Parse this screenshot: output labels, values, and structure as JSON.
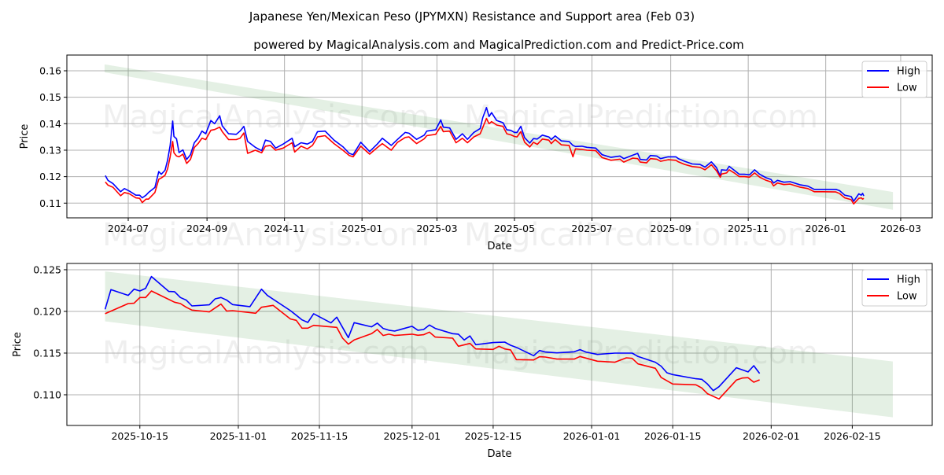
{
  "title": "Japanese Yen/Mexican Peso (JPYMXN) Resistance and Support area (Feb 03)",
  "subtitle": "powered by MagicalAnalysis.com and MagicalPrediction.com and Predict-Price.com",
  "watermarks": [
    "MagicalAnalysis.com",
    "MagicalPrediction.com"
  ],
  "colors": {
    "high": "#0000ff",
    "low": "#ff0000",
    "band": "#2e8b2e",
    "grid": "#b0b0b0"
  },
  "chart_data": [
    {
      "type": "line",
      "name": "full-history",
      "x_unit": "days since 2024-07-01",
      "xlabel": "Date",
      "ylabel": "Price",
      "xlim": [
        -48.3,
        632.8
      ],
      "ylim": [
        0.10444,
        0.16594
      ],
      "grid": true,
      "legend": "top-right",
      "xticks": [
        {
          "x": 0,
          "label": "2024-07"
        },
        {
          "x": 62,
          "label": "2024-09"
        },
        {
          "x": 123,
          "label": "2024-11"
        },
        {
          "x": 184,
          "label": "2025-01"
        },
        {
          "x": 243,
          "label": "2025-03"
        },
        {
          "x": 304,
          "label": "2025-05"
        },
        {
          "x": 365,
          "label": "2025-07"
        },
        {
          "x": 427,
          "label": "2025-09"
        },
        {
          "x": 488,
          "label": "2025-11"
        },
        {
          "x": 549,
          "label": "2026-01"
        },
        {
          "x": 608,
          "label": "2026-03"
        }
      ],
      "yticks": [
        {
          "y": 0.11,
          "label": "0.11"
        },
        {
          "y": 0.12,
          "label": "0.12"
        },
        {
          "y": 0.13,
          "label": "0.13"
        },
        {
          "y": 0.14,
          "label": "0.14"
        },
        {
          "y": 0.15,
          "label": "0.15"
        },
        {
          "y": 0.16,
          "label": "0.16"
        }
      ],
      "band": {
        "x": [
          -18.6,
          601.9
        ],
        "upper": [
          0.1624,
          0.1142
        ],
        "lower": [
          0.1594,
          0.1075
        ]
      },
      "x": [
        -18,
        -16,
        -12,
        -6,
        -3,
        1,
        6,
        9,
        11,
        14,
        16,
        21,
        24,
        26,
        29,
        31,
        33,
        35,
        36,
        38,
        40,
        43,
        46,
        49,
        52,
        55,
        58,
        61,
        65,
        68,
        72,
        74,
        79,
        85,
        88,
        91,
        94,
        100,
        105,
        108,
        112,
        116,
        122,
        129,
        131,
        136,
        141,
        145,
        149,
        155,
        162,
        169,
        174,
        177,
        183,
        190,
        196,
        200,
        207,
        212,
        218,
        221,
        227,
        233,
        235,
        242,
        246,
        248,
        253,
        258,
        263,
        267,
        272,
        277,
        279,
        282,
        284,
        286,
        290,
        295,
        298,
        301,
        304,
        306,
        309,
        312,
        316,
        319,
        322,
        326,
        331,
        333,
        336,
        341,
        347,
        350,
        352,
        357,
        361,
        368,
        373,
        380,
        387,
        390,
        397,
        401,
        403,
        408,
        411,
        416,
        419,
        425,
        431,
        433,
        438,
        444,
        450,
        454,
        459,
        463,
        466,
        467,
        471,
        473,
        477,
        481,
        485,
        489,
        493,
        497,
        502,
        506,
        508,
        511,
        516,
        521,
        529,
        535,
        540,
        547,
        557,
        560,
        564,
        569,
        571,
        575,
        577,
        578,
        579
      ],
      "series": [
        {
          "name": "High",
          "values": [
            0.1204,
            0.1186,
            0.1174,
            0.1143,
            0.1155,
            0.1145,
            0.113,
            0.113,
            0.112,
            0.113,
            0.114,
            0.1159,
            0.1219,
            0.1209,
            0.1224,
            0.1263,
            0.1318,
            0.141,
            0.1352,
            0.1343,
            0.1291,
            0.1301,
            0.1265,
            0.1283,
            0.1328,
            0.1345,
            0.1372,
            0.1362,
            0.1412,
            0.14,
            0.143,
            0.1392,
            0.1362,
            0.136,
            0.1372,
            0.139,
            0.1333,
            0.1311,
            0.1298,
            0.1338,
            0.1333,
            0.1308,
            0.1323,
            0.1345,
            0.1313,
            0.1328,
            0.1323,
            0.1333,
            0.137,
            0.1372,
            0.1338,
            0.1313,
            0.1288,
            0.1283,
            0.133,
            0.1295,
            0.1323,
            0.1345,
            0.1318,
            0.1341,
            0.1367,
            0.1364,
            0.1341,
            0.1357,
            0.1372,
            0.1377,
            0.1414,
            0.1387,
            0.1384,
            0.1341,
            0.1362,
            0.1341,
            0.1367,
            0.1382,
            0.1422,
            0.1461,
            0.1427,
            0.1442,
            0.1412,
            0.1404,
            0.1377,
            0.1375,
            0.1367,
            0.1367,
            0.139,
            0.1347,
            0.1327,
            0.1344,
            0.1342,
            0.1357,
            0.135,
            0.134,
            0.1354,
            0.1335,
            0.1333,
            0.1318,
            0.1314,
            0.1315,
            0.1311,
            0.1308,
            0.1283,
            0.1273,
            0.1278,
            0.1268,
            0.1281,
            0.1288,
            0.1265,
            0.1263,
            0.128,
            0.1278,
            0.1268,
            0.1275,
            0.1275,
            0.1268,
            0.1258,
            0.1248,
            0.1246,
            0.1236,
            0.1256,
            0.1234,
            0.1202,
            0.1226,
            0.1224,
            0.1239,
            0.1224,
            0.1209,
            0.1209,
            0.1207,
            0.1226,
            0.1209,
            0.1196,
            0.1189,
            0.1176,
            0.1186,
            0.1179,
            0.1181,
            0.1169,
            0.1164,
            0.1152,
            0.1152,
            0.1152,
            0.1147,
            0.113,
            0.1125,
            0.1107,
            0.1135,
            0.113,
            0.1137,
            0.1127
          ]
        },
        {
          "name": "Low",
          "values": [
            0.118,
            0.1168,
            0.116,
            0.1128,
            0.114,
            0.1135,
            0.112,
            0.1118,
            0.1102,
            0.1115,
            0.1115,
            0.114,
            0.119,
            0.1195,
            0.1205,
            0.123,
            0.1275,
            0.1333,
            0.129,
            0.1278,
            0.1275,
            0.1285,
            0.125,
            0.1265,
            0.131,
            0.1325,
            0.1345,
            0.134,
            0.1375,
            0.1378,
            0.1387,
            0.137,
            0.134,
            0.134,
            0.1345,
            0.1365,
            0.1288,
            0.13,
            0.129,
            0.1315,
            0.1318,
            0.13,
            0.1308,
            0.1328,
            0.1293,
            0.1315,
            0.1305,
            0.1318,
            0.135,
            0.1355,
            0.1325,
            0.13,
            0.128,
            0.1275,
            0.1315,
            0.1285,
            0.131,
            0.1325,
            0.13,
            0.133,
            0.1348,
            0.135,
            0.1325,
            0.1343,
            0.1355,
            0.136,
            0.139,
            0.137,
            0.1372,
            0.1328,
            0.1345,
            0.1328,
            0.135,
            0.1362,
            0.1385,
            0.142,
            0.14,
            0.1408,
            0.1395,
            0.139,
            0.1362,
            0.1358,
            0.1352,
            0.135,
            0.137,
            0.133,
            0.1312,
            0.133,
            0.1322,
            0.1342,
            0.1338,
            0.1325,
            0.134,
            0.132,
            0.1318,
            0.1275,
            0.1305,
            0.1303,
            0.13,
            0.1298,
            0.1272,
            0.1262,
            0.1266,
            0.1255,
            0.127,
            0.1268,
            0.1255,
            0.1252,
            0.1268,
            0.1266,
            0.1258,
            0.1264,
            0.1262,
            0.1256,
            0.1246,
            0.1238,
            0.1235,
            0.1226,
            0.1245,
            0.1222,
            0.1198,
            0.121,
            0.1214,
            0.1226,
            0.1214,
            0.12,
            0.12,
            0.1198,
            0.1214,
            0.1198,
            0.1186,
            0.118,
            0.1165,
            0.1176,
            0.117,
            0.1172,
            0.116,
            0.1155,
            0.1143,
            0.1143,
            0.1142,
            0.1136,
            0.112,
            0.1113,
            0.1097,
            0.1118,
            0.112,
            0.1115,
            0.1118
          ]
        }
      ]
    },
    {
      "type": "line",
      "name": "recent-detail",
      "x_unit": "days since 2025-10-15",
      "xlabel": "Date",
      "ylabel": "Price",
      "xlim": [
        -12.6,
        136.8
      ],
      "ylim": [
        0.10632,
        0.12575
      ],
      "grid": true,
      "legend": "top-right",
      "xticks": [
        {
          "x": 0,
          "label": "2025-10-15"
        },
        {
          "x": 17,
          "label": "2025-11-01"
        },
        {
          "x": 31,
          "label": "2025-11-15"
        },
        {
          "x": 47,
          "label": "2025-12-01"
        },
        {
          "x": 61,
          "label": "2025-12-15"
        },
        {
          "x": 78,
          "label": "2026-01-01"
        },
        {
          "x": 92,
          "label": "2026-01-15"
        },
        {
          "x": 109,
          "label": "2026-02-01"
        },
        {
          "x": 123,
          "label": "2026-02-15"
        }
      ],
      "yticks": [
        {
          "y": 0.11,
          "label": "0.110"
        },
        {
          "y": 0.115,
          "label": "0.115"
        },
        {
          "y": 0.12,
          "label": "0.120"
        },
        {
          "y": 0.125,
          "label": "0.125"
        }
      ],
      "band": {
        "x": [
          -6,
          130
        ],
        "upper": [
          0.1248,
          0.114
        ],
        "lower": [
          0.1188,
          0.1073
        ]
      },
      "series": [
        {
          "name": "High",
          "x": [
            -6,
            -5,
            -2,
            -1,
            0,
            1,
            2,
            5,
            6,
            7,
            8,
            9,
            12,
            13,
            14,
            15,
            16,
            19,
            21,
            22,
            26,
            28,
            29,
            30,
            33,
            34,
            36,
            37,
            40,
            41,
            42,
            43,
            44,
            47,
            48,
            49,
            50,
            51,
            54,
            55,
            56,
            57,
            58,
            61,
            63,
            64,
            65,
            68,
            69,
            70,
            72,
            75,
            76,
            77,
            79,
            82,
            85,
            86,
            89,
            90,
            91,
            92,
            96,
            97,
            98,
            99,
            100,
            103,
            105,
            106,
            107
          ],
          "values": [
            0.12025,
            0.12261,
            0.12192,
            0.12267,
            0.12245,
            0.12277,
            0.12418,
            0.12239,
            0.12236,
            0.12167,
            0.12135,
            0.12066,
            0.12079,
            0.12151,
            0.12167,
            0.12135,
            0.12082,
            0.12057,
            0.12267,
            0.12192,
            0.12009,
            0.11899,
            0.11868,
            0.11972,
            0.11862,
            0.11931,
            0.11686,
            0.11865,
            0.11815,
            0.11859,
            0.11796,
            0.11774,
            0.11764,
            0.11821,
            0.11774,
            0.11783,
            0.11836,
            0.11796,
            0.11733,
            0.11727,
            0.11657,
            0.11705,
            0.11601,
            0.11626,
            0.11632,
            0.11594,
            0.11569,
            0.11469,
            0.11531,
            0.11513,
            0.11503,
            0.11516,
            0.11541,
            0.11513,
            0.11484,
            0.115,
            0.115,
            0.11459,
            0.1139,
            0.11343,
            0.11264,
            0.11242,
            0.11192,
            0.11186,
            0.11129,
            0.1105,
            0.11097,
            0.11324,
            0.11274,
            0.11349,
            0.11255
          ]
        },
        {
          "name": "Low",
          "x": [
            -6,
            -2,
            -1,
            0,
            1,
            2,
            6,
            7,
            8,
            9,
            12,
            14,
            15,
            16,
            20,
            21,
            23,
            26,
            27,
            28,
            29,
            30,
            34,
            35,
            36,
            37,
            40,
            41,
            42,
            43,
            44,
            47,
            48,
            49,
            50,
            51,
            54,
            55,
            57,
            58,
            61,
            62,
            63,
            64,
            65,
            68,
            69,
            70,
            72,
            75,
            76,
            79,
            82,
            84,
            85,
            86,
            89,
            90,
            92,
            96,
            97,
            98,
            100,
            103,
            104,
            105,
            106,
            107
          ],
          "values": [
            0.11972,
            0.12094,
            0.12098,
            0.12167,
            0.12167,
            0.12245,
            0.1211,
            0.12094,
            0.1205,
            0.12016,
            0.11994,
            0.12088,
            0.12003,
            0.12009,
            0.11978,
            0.1205,
            0.12072,
            0.11909,
            0.11893,
            0.11799,
            0.11799,
            0.11833,
            0.11808,
            0.11679,
            0.11607,
            0.11657,
            0.11733,
            0.11783,
            0.11711,
            0.11727,
            0.11711,
            0.11727,
            0.11714,
            0.1172,
            0.11752,
            0.11692,
            0.11679,
            0.11582,
            0.11616,
            0.1155,
            0.11544,
            0.11582,
            0.1155,
            0.11538,
            0.11421,
            0.11418,
            0.11456,
            0.11453,
            0.11428,
            0.11428,
            0.11459,
            0.11403,
            0.1139,
            0.11443,
            0.11437,
            0.11371,
            0.11318,
            0.11208,
            0.11129,
            0.1112,
            0.11082,
            0.11013,
            0.1095,
            0.11176,
            0.11201,
            0.11205,
            0.11151,
            0.11179
          ]
        }
      ]
    }
  ]
}
